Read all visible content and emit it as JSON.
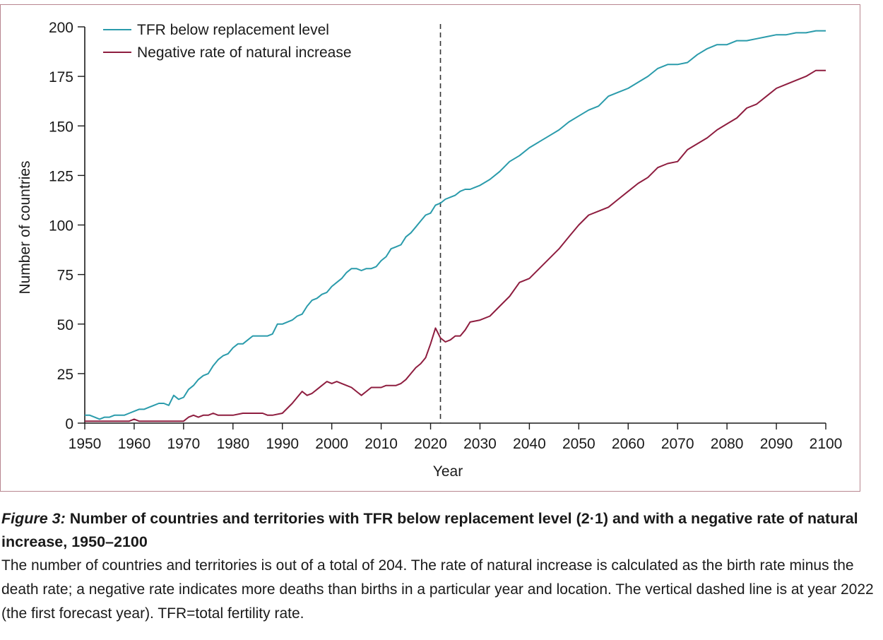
{
  "chart_data": {
    "type": "line",
    "xlabel": "Year",
    "ylabel": "Number of countries",
    "xlim": [
      1950,
      2100
    ],
    "ylim": [
      0,
      200
    ],
    "xticks": [
      1950,
      1960,
      1970,
      1980,
      1990,
      2000,
      2010,
      2020,
      2030,
      2040,
      2050,
      2060,
      2070,
      2080,
      2090,
      2100
    ],
    "yticks": [
      0,
      25,
      50,
      75,
      100,
      125,
      150,
      175,
      200
    ],
    "legend_position": "top-left",
    "reference_line": {
      "x": 2022,
      "style": "dashed"
    },
    "series": [
      {
        "name": "TFR below replacement level",
        "color": "#2a9bab",
        "x": [
          1950,
          1951,
          1952,
          1953,
          1954,
          1955,
          1956,
          1957,
          1958,
          1959,
          1960,
          1961,
          1962,
          1963,
          1964,
          1965,
          1966,
          1967,
          1968,
          1969,
          1970,
          1971,
          1972,
          1973,
          1974,
          1975,
          1976,
          1977,
          1978,
          1979,
          1980,
          1981,
          1982,
          1983,
          1984,
          1985,
          1986,
          1987,
          1988,
          1989,
          1990,
          1991,
          1992,
          1993,
          1994,
          1995,
          1996,
          1997,
          1998,
          1999,
          2000,
          2001,
          2002,
          2003,
          2004,
          2005,
          2006,
          2007,
          2008,
          2009,
          2010,
          2011,
          2012,
          2013,
          2014,
          2015,
          2016,
          2017,
          2018,
          2019,
          2020,
          2021,
          2022,
          2023,
          2024,
          2025,
          2026,
          2027,
          2028,
          2029,
          2030,
          2032,
          2034,
          2036,
          2038,
          2040,
          2042,
          2044,
          2046,
          2048,
          2050,
          2052,
          2054,
          2056,
          2058,
          2060,
          2062,
          2064,
          2066,
          2068,
          2070,
          2072,
          2074,
          2076,
          2078,
          2080,
          2082,
          2084,
          2086,
          2088,
          2090,
          2092,
          2094,
          2096,
          2098,
          2100
        ],
        "y": [
          4,
          4,
          3,
          2,
          3,
          3,
          4,
          4,
          4,
          5,
          6,
          7,
          7,
          8,
          9,
          10,
          10,
          9,
          14,
          12,
          13,
          17,
          19,
          22,
          24,
          25,
          29,
          32,
          34,
          35,
          38,
          40,
          40,
          42,
          44,
          44,
          44,
          44,
          45,
          50,
          50,
          51,
          52,
          54,
          55,
          59,
          62,
          63,
          65,
          66,
          69,
          71,
          73,
          76,
          78,
          78,
          77,
          78,
          78,
          79,
          82,
          84,
          88,
          89,
          90,
          94,
          96,
          99,
          102,
          105,
          106,
          110,
          111,
          113,
          114,
          115,
          117,
          118,
          118,
          119,
          120,
          123,
          127,
          132,
          135,
          139,
          142,
          145,
          148,
          152,
          155,
          158,
          160,
          165,
          167,
          169,
          172,
          175,
          179,
          181,
          181,
          182,
          186,
          189,
          191,
          191,
          193,
          193,
          194,
          195,
          196,
          196,
          197,
          197,
          198,
          198
        ]
      },
      {
        "name": "Negative rate of natural increase",
        "color": "#8e1d3f",
        "x": [
          1950,
          1955,
          1959,
          1960,
          1961,
          1965,
          1970,
          1971,
          1972,
          1973,
          1974,
          1975,
          1976,
          1977,
          1978,
          1980,
          1982,
          1984,
          1986,
          1987,
          1988,
          1990,
          1992,
          1993,
          1994,
          1995,
          1996,
          1997,
          1998,
          1999,
          2000,
          2001,
          2002,
          2003,
          2004,
          2005,
          2006,
          2007,
          2008,
          2009,
          2010,
          2011,
          2012,
          2013,
          2014,
          2015,
          2016,
          2017,
          2018,
          2019,
          2020,
          2021,
          2022,
          2023,
          2024,
          2025,
          2026,
          2027,
          2028,
          2030,
          2032,
          2034,
          2036,
          2038,
          2040,
          2042,
          2044,
          2046,
          2048,
          2050,
          2052,
          2054,
          2056,
          2058,
          2060,
          2062,
          2064,
          2066,
          2068,
          2070,
          2072,
          2074,
          2076,
          2078,
          2080,
          2082,
          2084,
          2086,
          2088,
          2090,
          2092,
          2094,
          2096,
          2098,
          2100
        ],
        "y": [
          1,
          1,
          1,
          2,
          1,
          1,
          1,
          3,
          4,
          3,
          4,
          4,
          5,
          4,
          4,
          4,
          5,
          5,
          5,
          4,
          4,
          5,
          10,
          13,
          16,
          14,
          15,
          17,
          19,
          21,
          20,
          21,
          20,
          19,
          18,
          16,
          14,
          16,
          18,
          18,
          18,
          19,
          19,
          19,
          20,
          22,
          25,
          28,
          30,
          33,
          40,
          48,
          43,
          41,
          42,
          44,
          44,
          47,
          51,
          52,
          54,
          59,
          64,
          71,
          73,
          78,
          83,
          88,
          94,
          100,
          105,
          107,
          109,
          113,
          117,
          121,
          124,
          129,
          131,
          132,
          138,
          141,
          144,
          148,
          151,
          154,
          159,
          161,
          165,
          169,
          171,
          173,
          175,
          178,
          178
        ]
      }
    ]
  },
  "caption": {
    "figure_label": "Figure 3:",
    "title": "Number of countries and territories with TFR below replacement level (2·1) and with a negative rate of natural increase, 1950–2100",
    "body": "The number of countries and territories is out of a total of 204. The rate of natural increase is calculated as the birth rate minus the death rate; a negative rate indicates more deaths than births in a particular year and location. The vertical dashed line is at year 2022 (the first forecast year). TFR=total fertility rate."
  }
}
